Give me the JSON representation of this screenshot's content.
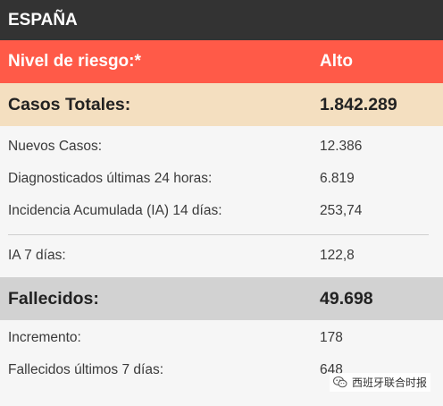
{
  "header": {
    "title": "ESPAÑA"
  },
  "risk": {
    "label": "Nivel de riesgo:*",
    "value": "Alto"
  },
  "cases": {
    "label": "Casos Totales:",
    "value": "1.842.289",
    "details": [
      {
        "label": "Nuevos Casos:",
        "value": "12.386"
      },
      {
        "label": "Diagnosticados últimas 24 horas:",
        "value": "6.819"
      },
      {
        "label": "Incidencia Acumulada (IA) 14 días:",
        "value": "253,74"
      }
    ],
    "ia7": {
      "label": "IA 7 días:",
      "value": "122,8"
    }
  },
  "deaths": {
    "label": "Fallecidos:",
    "value": "49.698",
    "details": [
      {
        "label": "Incremento:",
        "value": "178"
      },
      {
        "label": "Fallecidos últimos 7 días:",
        "value": "648"
      }
    ]
  },
  "watermark": {
    "text": "西班牙联合时报",
    "icon": "wechat-icon"
  },
  "colors": {
    "header_bg": "#333333",
    "risk_bg": "#ff5a48",
    "cases_bg": "#f4dfc0",
    "deaths_bg": "#d2d2d2"
  }
}
